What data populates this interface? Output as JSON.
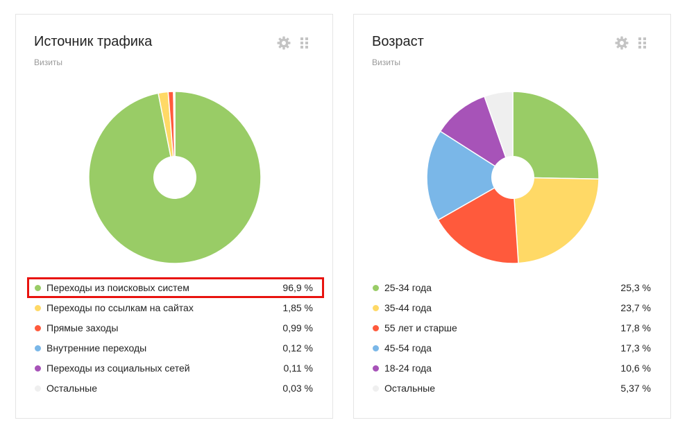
{
  "widgets": [
    {
      "title": "Источник трафика",
      "subtitle": "Визиты",
      "legend": [
        {
          "label": "Переходы из поисковых систем",
          "value": "96,9 %"
        },
        {
          "label": "Переходы по ссылкам на сайтах",
          "value": "1,85 %"
        },
        {
          "label": "Прямые заходы",
          "value": "0,99 %"
        },
        {
          "label": "Внутренние переходы",
          "value": "0,12 %"
        },
        {
          "label": "Переходы из социальных сетей",
          "value": "0,11 %"
        },
        {
          "label": "Остальные",
          "value": "0,03 %"
        }
      ]
    },
    {
      "title": "Возраст",
      "subtitle": "Визиты",
      "legend": [
        {
          "label": "25-34 года",
          "value": "25,3 %"
        },
        {
          "label": "35-44 года",
          "value": "23,7 %"
        },
        {
          "label": "55 лет и старше",
          "value": "17,8 %"
        },
        {
          "label": "45-54 года",
          "value": "17,3 %"
        },
        {
          "label": "18-24 года",
          "value": "10,6 %"
        },
        {
          "label": "Остальные",
          "value": "5,37 %"
        }
      ]
    }
  ],
  "icons": {
    "settings": "gear-icon",
    "drag": "drag-handle-icon"
  },
  "colors": {
    "highlight": "#e8130f",
    "icon": "#c4c4c4"
  },
  "chart_data": [
    {
      "type": "pie",
      "title": "Источник трафика",
      "subtitle": "Визиты",
      "donut": true,
      "categories": [
        "Переходы из поисковых систем",
        "Переходы по ссылкам на сайтах",
        "Прямые заходы",
        "Внутренние переходы",
        "Переходы из социальных сетей",
        "Остальные"
      ],
      "values": [
        96.9,
        1.85,
        0.99,
        0.12,
        0.11,
        0.03
      ],
      "colors": [
        "#99cc66",
        "#ffd966",
        "#ff5a3c",
        "#7ab7e8",
        "#a753b8",
        "#efefef"
      ],
      "legend": "bottom"
    },
    {
      "type": "pie",
      "title": "Возраст",
      "subtitle": "Визиты",
      "donut": true,
      "categories": [
        "25-34 года",
        "35-44 года",
        "55 лет и старше",
        "45-54 года",
        "18-24 года",
        "Остальные"
      ],
      "values": [
        25.3,
        23.7,
        17.8,
        17.3,
        10.6,
        5.37
      ],
      "colors": [
        "#99cc66",
        "#ffd966",
        "#ff5a3c",
        "#7ab7e8",
        "#a753b8",
        "#efefef"
      ],
      "legend": "bottom"
    }
  ]
}
